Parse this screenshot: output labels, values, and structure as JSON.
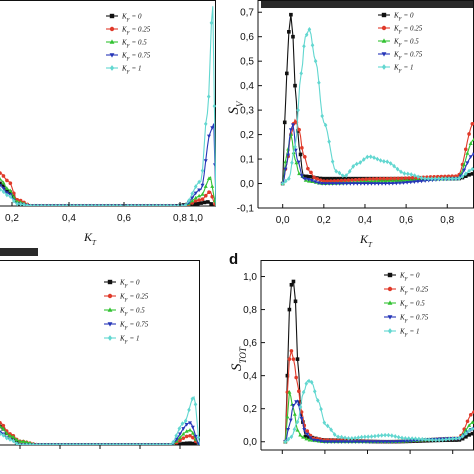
{
  "colors": {
    "black": "#111111",
    "red": "#e03a2a",
    "green": "#33c233",
    "blue": "#2636b8",
    "cyan": "#62d7d0"
  },
  "legend_entries": [
    "K_F = 0",
    "K_F = 0.25",
    "K_F = 0.5",
    "K_F = 0.75",
    "K_F = 1"
  ],
  "chart_data": [
    {
      "id": "a",
      "type": "line",
      "panel_letter": "",
      "xlabel": "K_T",
      "ylabel": "",
      "xlim": [
        0.0,
        1.0
      ],
      "ylim": [
        0.0,
        1.0
      ],
      "xticks": [
        "0,2",
        "0,4",
        "0,6",
        "0,8",
        "1,0"
      ],
      "yticks": [],
      "legend_position": "top-right",
      "series": [
        {
          "name": "K_F = 0",
          "x": [
            0.0,
            0.04,
            0.1,
            0.2,
            0.5,
            0.8,
            0.9,
            0.97,
            0.985,
            1.0
          ],
          "y": [
            0.11,
            0.07,
            0.0,
            0.0,
            0.0,
            0.0,
            0.01,
            0.02,
            0.0,
            0.0
          ]
        },
        {
          "name": "K_F = 0.25",
          "x": [
            0.0,
            0.04,
            0.08,
            0.15,
            0.5,
            0.85,
            0.93,
            0.975,
            0.99,
            1.0
          ],
          "y": [
            0.16,
            0.12,
            0.03,
            0.0,
            0.0,
            0.0,
            0.03,
            0.07,
            0.02,
            0.0
          ]
        },
        {
          "name": "K_F = 0.5",
          "x": [
            0.0,
            0.04,
            0.08,
            0.15,
            0.5,
            0.85,
            0.93,
            0.975,
            0.99,
            1.0
          ],
          "y": [
            0.13,
            0.08,
            0.02,
            0.0,
            0.0,
            0.0,
            0.05,
            0.14,
            0.05,
            0.0
          ]
        },
        {
          "name": "K_F = 0.75",
          "x": [
            0.0,
            0.04,
            0.08,
            0.15,
            0.5,
            0.85,
            0.93,
            0.975,
            0.99,
            1.0
          ],
          "y": [
            0.1,
            0.06,
            0.01,
            0.0,
            0.0,
            0.0,
            0.08,
            0.36,
            0.4,
            0.0
          ]
        },
        {
          "name": "K_F = 1",
          "x": [
            0.0,
            0.04,
            0.08,
            0.15,
            0.5,
            0.85,
            0.93,
            0.96,
            0.985,
            1.0
          ],
          "y": [
            0.08,
            0.05,
            0.01,
            0.0,
            0.0,
            0.0,
            0.12,
            0.45,
            0.97,
            0.0
          ]
        }
      ]
    },
    {
      "id": "b",
      "type": "line",
      "panel_letter": "",
      "xlabel": "K_T",
      "ylabel": "S_V",
      "xlim": [
        -0.12,
        0.93
      ],
      "ylim": [
        -0.1,
        0.75
      ],
      "xticks": [
        "0,0",
        "0,2",
        "0,4",
        "0,6",
        "0,8"
      ],
      "xtick_values": [
        0.0,
        0.2,
        0.4,
        0.6,
        0.8
      ],
      "yticks": [
        "-0,1",
        "0,0",
        "0,1",
        "0,2",
        "0,3",
        "0,4",
        "0,5",
        "0,6",
        "0,7"
      ],
      "ytick_values": [
        -0.1,
        0.0,
        0.1,
        0.2,
        0.3,
        0.4,
        0.5,
        0.6,
        0.7
      ],
      "legend_position": "top-right",
      "series": [
        {
          "name": "K_F = 0",
          "x": [
            0.0,
            0.01,
            0.02,
            0.03,
            0.04,
            0.05,
            0.06,
            0.08,
            0.1,
            0.2,
            0.5,
            0.85,
            0.93
          ],
          "y": [
            0.0,
            0.25,
            0.45,
            0.62,
            0.69,
            0.6,
            0.4,
            0.15,
            0.03,
            0.02,
            0.02,
            0.02,
            0.04
          ]
        },
        {
          "name": "K_F = 0.25",
          "x": [
            0.0,
            0.02,
            0.04,
            0.06,
            0.08,
            0.1,
            0.13,
            0.16,
            0.2,
            0.5,
            0.85,
            0.93
          ],
          "y": [
            0.0,
            0.08,
            0.2,
            0.26,
            0.22,
            0.12,
            0.05,
            0.02,
            0.01,
            0.02,
            0.03,
            0.25
          ]
        },
        {
          "name": "K_F = 0.5",
          "x": [
            0.0,
            0.02,
            0.04,
            0.06,
            0.08,
            0.12,
            0.2,
            0.5,
            0.85,
            0.93
          ],
          "y": [
            0.0,
            0.12,
            0.2,
            0.1,
            0.04,
            0.01,
            0.0,
            0.01,
            0.02,
            0.18
          ]
        },
        {
          "name": "K_F = 0.75",
          "x": [
            0.0,
            0.02,
            0.04,
            0.05,
            0.07,
            0.1,
            0.2,
            0.5,
            0.85,
            0.93
          ],
          "y": [
            0.0,
            0.08,
            0.22,
            0.24,
            0.1,
            0.02,
            0.0,
            0.0,
            0.02,
            0.12
          ]
        },
        {
          "name": "K_F = 1",
          "x": [
            0.0,
            0.03,
            0.06,
            0.09,
            0.11,
            0.13,
            0.16,
            0.2,
            0.26,
            0.3,
            0.36,
            0.42,
            0.5,
            0.6,
            0.7,
            0.85,
            0.93
          ],
          "y": [
            0.0,
            0.02,
            0.15,
            0.45,
            0.6,
            0.63,
            0.5,
            0.25,
            0.05,
            0.03,
            0.08,
            0.11,
            0.09,
            0.04,
            0.02,
            0.02,
            0.06
          ]
        }
      ]
    },
    {
      "id": "c",
      "type": "line",
      "panel_letter": "",
      "xlabel": "",
      "ylabel": "",
      "xlim": [
        0.0,
        1.0
      ],
      "ylim": [
        0.0,
        1.0
      ],
      "xticks": [],
      "yticks": [],
      "legend_position": "top-right",
      "series": [
        {
          "name": "K_F = 0",
          "x": [
            0.0,
            0.05,
            0.1,
            0.2,
            0.5,
            0.85,
            0.95,
            1.0
          ],
          "y": [
            0.1,
            0.05,
            0.0,
            0.0,
            0.0,
            0.0,
            0.01,
            0.0
          ]
        },
        {
          "name": "K_F = 0.25",
          "x": [
            0.0,
            0.05,
            0.1,
            0.2,
            0.5,
            0.85,
            0.95,
            1.0
          ],
          "y": [
            0.12,
            0.06,
            0.02,
            0.0,
            0.0,
            0.0,
            0.05,
            0.0
          ]
        },
        {
          "name": "K_F = 0.5",
          "x": [
            0.0,
            0.05,
            0.1,
            0.2,
            0.5,
            0.85,
            0.95,
            1.0
          ],
          "y": [
            0.1,
            0.05,
            0.02,
            0.0,
            0.0,
            0.0,
            0.08,
            0.0
          ]
        },
        {
          "name": "K_F = 0.75",
          "x": [
            0.0,
            0.05,
            0.1,
            0.2,
            0.5,
            0.85,
            0.95,
            1.0
          ],
          "y": [
            0.07,
            0.03,
            0.0,
            0.0,
            0.0,
            0.0,
            0.12,
            0.0
          ]
        },
        {
          "name": "K_F = 1",
          "x": [
            0.0,
            0.05,
            0.1,
            0.2,
            0.5,
            0.85,
            0.92,
            0.97,
            1.0
          ],
          "y": [
            0.06,
            0.03,
            0.0,
            0.0,
            0.0,
            0.0,
            0.12,
            0.26,
            0.0
          ]
        }
      ]
    },
    {
      "id": "d",
      "type": "line",
      "panel_letter": "d",
      "xlabel": "",
      "ylabel": "S_TOT",
      "xlim": [
        -0.12,
        0.93
      ],
      "ylim": [
        -0.05,
        1.1
      ],
      "xticks": [],
      "yticks": [
        "0,0",
        "0,2",
        "0,4",
        "0,6",
        "0,8",
        "1,0"
      ],
      "ytick_values": [
        0.0,
        0.2,
        0.4,
        0.6,
        0.8,
        1.0
      ],
      "legend_position": "top-right",
      "series": [
        {
          "name": "K_F = 0",
          "x": [
            0.0,
            0.01,
            0.02,
            0.03,
            0.04,
            0.05,
            0.06,
            0.08,
            0.1,
            0.2,
            0.5,
            0.85,
            0.93
          ],
          "y": [
            0.0,
            0.4,
            0.8,
            0.95,
            0.97,
            0.85,
            0.5,
            0.15,
            0.03,
            0.01,
            0.0,
            0.01,
            0.05
          ]
        },
        {
          "name": "K_F = 0.25",
          "x": [
            0.0,
            0.01,
            0.02,
            0.03,
            0.04,
            0.06,
            0.08,
            0.1,
            0.14,
            0.2,
            0.5,
            0.85,
            0.93
          ],
          "y": [
            0.0,
            0.3,
            0.5,
            0.55,
            0.5,
            0.35,
            0.18,
            0.07,
            0.02,
            0.01,
            0.0,
            0.02,
            0.18
          ]
        },
        {
          "name": "K_F = 0.5",
          "x": [
            0.0,
            0.01,
            0.02,
            0.04,
            0.06,
            0.08,
            0.12,
            0.2,
            0.5,
            0.85,
            0.93
          ],
          "y": [
            0.0,
            0.15,
            0.3,
            0.2,
            0.07,
            0.03,
            0.01,
            0.0,
            0.0,
            0.02,
            0.12
          ]
        },
        {
          "name": "K_F = 0.75",
          "x": [
            0.0,
            0.02,
            0.04,
            0.06,
            0.08,
            0.1,
            0.14,
            0.2,
            0.5,
            0.85,
            0.93
          ],
          "y": [
            0.0,
            0.1,
            0.22,
            0.25,
            0.14,
            0.05,
            0.01,
            0.0,
            0.0,
            0.02,
            0.08
          ]
        },
        {
          "name": "K_F = 1",
          "x": [
            0.0,
            0.03,
            0.06,
            0.09,
            0.11,
            0.13,
            0.16,
            0.2,
            0.26,
            0.32,
            0.4,
            0.5,
            0.6,
            0.75,
            0.85,
            0.93
          ],
          "y": [
            0.0,
            0.03,
            0.12,
            0.3,
            0.37,
            0.36,
            0.25,
            0.1,
            0.03,
            0.02,
            0.03,
            0.04,
            0.02,
            0.01,
            0.02,
            0.08
          ]
        }
      ]
    }
  ]
}
